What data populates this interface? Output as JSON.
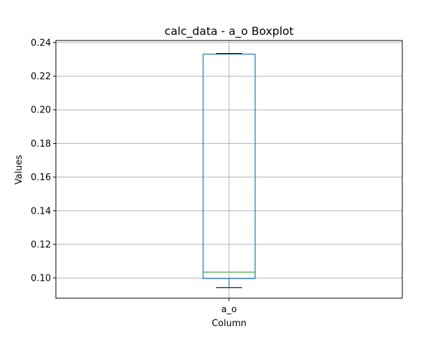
{
  "chart_data": {
    "type": "boxplot",
    "title": "calc_data - a_o Boxplot",
    "xlabel": "Column",
    "ylabel": "Values",
    "categories": [
      "a_o"
    ],
    "boxes": [
      {
        "name": "a_o",
        "whisker_low": 0.0943,
        "q1": 0.0997,
        "median": 0.1035,
        "q3": 0.2331,
        "whisker_high": 0.2335
      }
    ],
    "ylim": [
      0.088,
      0.2412
    ],
    "yticks": [
      0.1,
      0.12,
      0.14,
      0.16,
      0.18,
      0.2,
      0.22,
      0.24
    ],
    "ytick_labels": [
      "0.10",
      "0.12",
      "0.14",
      "0.16",
      "0.18",
      "0.20",
      "0.22",
      "0.24"
    ],
    "grid": true,
    "colors": {
      "box": "#1f77b4",
      "median": "#2ca02c",
      "whisker": "#000000",
      "grid": "#b0b0b0",
      "axes": "#000000"
    }
  }
}
